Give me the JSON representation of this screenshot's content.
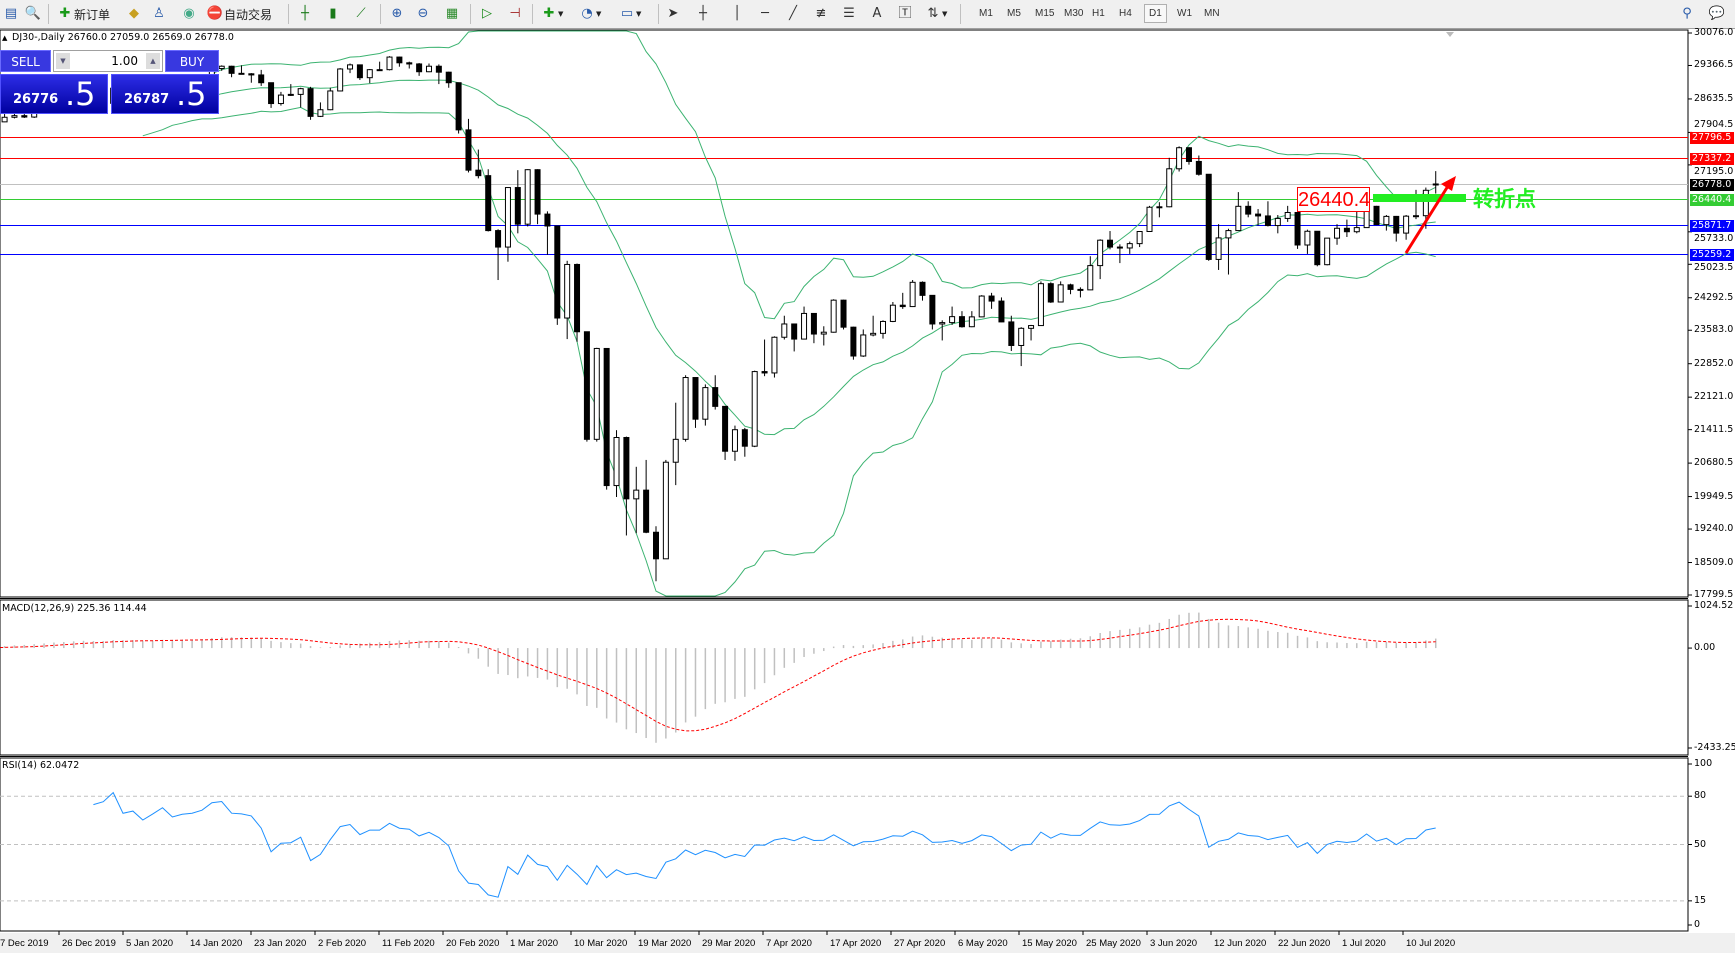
{
  "toolbar": {
    "new_order_label": "新订单",
    "auto_trading_label": "自动交易",
    "timeframes": [
      "M1",
      "M5",
      "M15",
      "M30",
      "H1",
      "H4",
      "D1",
      "W1",
      "MN"
    ],
    "active_timeframe": "D1"
  },
  "chart_info": "DJ30-,Daily  26760.0 27059.0 26569.0 26778.0",
  "trade_panel": {
    "sell_label": "SELL",
    "buy_label": "BUY",
    "lot": "1.00",
    "sell_main": "26776",
    "sell_frac": ".5",
    "buy_main": "26787",
    "buy_frac": ".5"
  },
  "annotation": {
    "value": "26440.4",
    "text": "转折点",
    "color_text": "#22ee22",
    "color_box": "#ff0000"
  },
  "chart_data": {
    "type": "candlestick",
    "symbol": "DJ30-",
    "timeframe": "Daily",
    "ylim": [
      17799.5,
      30076.0
    ],
    "y_ticks": [
      "30076.0",
      "29366.5",
      "28635.5",
      "27904.5",
      "27195.0",
      "25733.0",
      "25023.5",
      "24292.5",
      "23583.0",
      "22852.0",
      "22121.0",
      "21411.5",
      "20680.5",
      "19949.5",
      "19240.0",
      "18509.0",
      "17799.5"
    ],
    "x_tick_labels": [
      "7 Dec 2019",
      "26 Dec 2019",
      "5 Jan 2020",
      "14 Jan 2020",
      "23 Jan 2020",
      "2 Feb 2020",
      "11 Feb 2020",
      "20 Feb 2020",
      "1 Mar 2020",
      "10 Mar 2020",
      "19 Mar 2020",
      "29 Mar 2020",
      "7 Apr 2020",
      "17 Apr 2020",
      "27 Apr 2020",
      "6 May 2020",
      "15 May 2020",
      "25 May 2020",
      "3 Jun 2020",
      "12 Jun 2020",
      "22 Jun 2020",
      "1 Jul 2020",
      "10 Jul 2020"
    ],
    "horizontal_lines": [
      {
        "value": "27796.5",
        "color": "#ff0000"
      },
      {
        "value": "27337.2",
        "color": "#ff0000"
      },
      {
        "value": "26778.0",
        "color": "#000000",
        "line_color": "#c0c0c0"
      },
      {
        "value": "26440.4",
        "color": "#33cc33"
      },
      {
        "value": "25871.7",
        "color": "#0000ff"
      },
      {
        "value": "25259.2",
        "color": "#0000ff"
      }
    ],
    "bollinger_color": "#3cb371",
    "ohlc": [
      [
        28010,
        28050,
        27870,
        27910
      ],
      [
        27910,
        27990,
        27840,
        27880
      ],
      [
        27880,
        27960,
        27860,
        27910
      ],
      [
        27910,
        28210,
        27880,
        28130
      ],
      [
        28130,
        28290,
        28030,
        28135
      ],
      [
        28135,
        28340,
        28130,
        28235
      ],
      [
        28235,
        28320,
        28210,
        28270
      ],
      [
        28270,
        28320,
        28220,
        28240
      ],
      [
        28240,
        28400,
        28220,
        28375
      ],
      [
        28375,
        28610,
        28360,
        28455
      ],
      [
        28455,
        28590,
        28450,
        28550
      ],
      [
        28550,
        28580,
        28490,
        28515
      ],
      [
        28515,
        28640,
        28510,
        28620
      ],
      [
        28620,
        28700,
        28590,
        28645
      ],
      [
        28645,
        28660,
        28420,
        28460
      ],
      [
        28460,
        28560,
        28380,
        28540
      ],
      [
        28540,
        28880,
        28530,
        28870
      ],
      [
        28870,
        28870,
        28500,
        28635
      ],
      [
        28635,
        28720,
        28400,
        28700
      ],
      [
        28700,
        28710,
        28550,
        28585
      ],
      [
        28585,
        28900,
        28450,
        28745
      ],
      [
        28745,
        29010,
        28740,
        28955
      ],
      [
        28955,
        29000,
        28800,
        28825
      ],
      [
        28825,
        28920,
        28790,
        28905
      ],
      [
        28905,
        29000,
        28840,
        28940
      ],
      [
        28940,
        29120,
        28920,
        29030
      ],
      [
        29030,
        29310,
        29020,
        29300
      ],
      [
        29300,
        29370,
        29250,
        29350
      ],
      [
        29350,
        29360,
        29110,
        29195
      ],
      [
        29195,
        29370,
        29170,
        29185
      ],
      [
        29185,
        29200,
        28990,
        29160
      ],
      [
        29160,
        29270,
        28920,
        28990
      ],
      [
        28990,
        28990,
        28440,
        28535
      ],
      [
        28535,
        28790,
        28490,
        28720
      ],
      [
        28720,
        28960,
        28700,
        28735
      ],
      [
        28735,
        28880,
        28450,
        28860
      ],
      [
        28860,
        28900,
        28180,
        28255
      ],
      [
        28255,
        28560,
        28240,
        28400
      ],
      [
        28400,
        28880,
        28390,
        28810
      ],
      [
        28810,
        29310,
        28800,
        29290
      ],
      [
        29290,
        29410,
        29200,
        29380
      ],
      [
        29380,
        29380,
        29050,
        29100
      ],
      [
        29100,
        29290,
        28980,
        29275
      ],
      [
        29275,
        29450,
        29250,
        29275
      ],
      [
        29275,
        29570,
        29260,
        29550
      ],
      [
        29550,
        29560,
        29340,
        29425
      ],
      [
        29425,
        29450,
        29300,
        29400
      ],
      [
        29400,
        29420,
        29140,
        29230
      ],
      [
        29230,
        29410,
        29220,
        29350
      ],
      [
        29350,
        29390,
        28960,
        29220
      ],
      [
        29220,
        29230,
        28880,
        28990
      ],
      [
        28990,
        28990,
        27880,
        27960
      ],
      [
        27960,
        28200,
        27030,
        27080
      ],
      [
        27080,
        27530,
        26900,
        26960
      ],
      [
        26960,
        27100,
        25740,
        25760
      ],
      [
        25760,
        25790,
        24680,
        25400
      ],
      [
        25400,
        26710,
        25080,
        26700
      ],
      [
        26700,
        27080,
        25700,
        25900
      ],
      [
        25900,
        27100,
        25850,
        27090
      ],
      [
        27090,
        27100,
        25900,
        26120
      ],
      [
        26120,
        26180,
        25230,
        25860
      ],
      [
        25860,
        25860,
        23700,
        23850
      ],
      [
        23850,
        25100,
        23390,
        25020
      ],
      [
        25020,
        25040,
        23330,
        23550
      ],
      [
        23550,
        23550,
        21150,
        21200
      ],
      [
        21200,
        23200,
        21150,
        23185
      ],
      [
        23185,
        23185,
        20100,
        20190
      ],
      [
        20190,
        21400,
        19940,
        21240
      ],
      [
        21240,
        21260,
        19100,
        19900
      ],
      [
        19900,
        20600,
        19150,
        20090
      ],
      [
        20090,
        20750,
        19150,
        19170
      ],
      [
        19170,
        19300,
        18100,
        18590
      ],
      [
        18590,
        20750,
        18590,
        20700
      ],
      [
        20700,
        22000,
        20200,
        21200
      ],
      [
        21200,
        22600,
        21150,
        22550
      ],
      [
        22550,
        22550,
        21450,
        21640
      ],
      [
        21640,
        22400,
        21500,
        22330
      ],
      [
        22330,
        22600,
        21850,
        21920
      ],
      [
        21920,
        21920,
        20750,
        20940
      ],
      [
        20940,
        21500,
        20730,
        21410
      ],
      [
        21410,
        21450,
        20820,
        21050
      ],
      [
        21050,
        22700,
        21030,
        22680
      ],
      [
        22680,
        23380,
        22580,
        22650
      ],
      [
        22650,
        23450,
        22550,
        23430
      ],
      [
        23430,
        23900,
        23380,
        23720
      ],
      [
        23720,
        23730,
        23120,
        23390
      ],
      [
        23390,
        24100,
        23380,
        23950
      ],
      [
        23950,
        23950,
        23300,
        23500
      ],
      [
        23500,
        23670,
        23250,
        23540
      ],
      [
        23540,
        24260,
        23530,
        24240
      ],
      [
        24240,
        24250,
        23600,
        23650
      ],
      [
        23650,
        23660,
        22940,
        23020
      ],
      [
        23020,
        23600,
        23000,
        23480
      ],
      [
        23480,
        23900,
        23450,
        23515
      ],
      [
        23515,
        23800,
        23400,
        23775
      ],
      [
        23775,
        24200,
        23760,
        24130
      ],
      [
        24130,
        24400,
        24050,
        24100
      ],
      [
        24100,
        24680,
        24090,
        24630
      ],
      [
        24630,
        24650,
        24230,
        24345
      ],
      [
        24345,
        24350,
        23600,
        23720
      ],
      [
        23720,
        23800,
        23360,
        23750
      ],
      [
        23750,
        24100,
        23700,
        23880
      ],
      [
        23880,
        24000,
        23640,
        23660
      ],
      [
        23660,
        24000,
        23650,
        23875
      ],
      [
        23875,
        24350,
        23870,
        24330
      ],
      [
        24330,
        24400,
        24050,
        24220
      ],
      [
        24220,
        24300,
        23760,
        23765
      ],
      [
        23765,
        23900,
        23130,
        23250
      ],
      [
        23250,
        23650,
        22800,
        23625
      ],
      [
        23625,
        23700,
        23360,
        23685
      ],
      [
        23685,
        24650,
        23680,
        24600
      ],
      [
        24600,
        24630,
        24180,
        24200
      ],
      [
        24200,
        24650,
        24190,
        24575
      ],
      [
        24575,
        24600,
        24370,
        24475
      ],
      [
        24475,
        24520,
        24300,
        24465
      ],
      [
        24465,
        25200,
        24460,
        24995
      ],
      [
        24995,
        25570,
        24700,
        25550
      ],
      [
        25550,
        25750,
        25350,
        25400
      ],
      [
        25400,
        25460,
        25050,
        25380
      ],
      [
        25380,
        25520,
        25250,
        25475
      ],
      [
        25475,
        25750,
        25400,
        25740
      ],
      [
        25740,
        26300,
        25730,
        26270
      ],
      [
        26270,
        26380,
        26050,
        26280
      ],
      [
        26280,
        27350,
        26270,
        27110
      ],
      [
        27110,
        27600,
        27050,
        27570
      ],
      [
        27570,
        27580,
        27200,
        27270
      ],
      [
        27270,
        27400,
        26960,
        26990
      ],
      [
        26990,
        26990,
        25100,
        25130
      ],
      [
        25130,
        25900,
        24900,
        25600
      ],
      [
        25600,
        25800,
        24800,
        25760
      ],
      [
        25760,
        26600,
        25750,
        26290
      ],
      [
        26290,
        26400,
        26050,
        26120
      ],
      [
        26120,
        26230,
        25870,
        26080
      ],
      [
        26080,
        26400,
        25850,
        25870
      ],
      [
        25870,
        26100,
        25700,
        26025
      ],
      [
        26025,
        26300,
        25950,
        26155
      ],
      [
        26155,
        26160,
        25360,
        25445
      ],
      [
        25445,
        25780,
        25250,
        25745
      ],
      [
        25745,
        25750,
        24980,
        25015
      ],
      [
        25015,
        25600,
        25000,
        25595
      ],
      [
        25595,
        25900,
        25450,
        25810
      ],
      [
        25810,
        26000,
        25620,
        25735
      ],
      [
        25735,
        26200,
        25700,
        25825
      ],
      [
        25825,
        26350,
        25820,
        26290
      ],
      [
        26290,
        26300,
        25880,
        25890
      ],
      [
        25890,
        26100,
        25760,
        26070
      ],
      [
        26070,
        26080,
        25520,
        25705
      ],
      [
        25705,
        26100,
        25560,
        26075
      ],
      [
        26075,
        26650,
        26010,
        26085
      ],
      [
        26085,
        26700,
        25800,
        26640
      ],
      [
        26760,
        27059,
        26569,
        26778
      ]
    ]
  },
  "macd": {
    "label": "MACD(12,26,9) 225.36 114.44",
    "ylim": [
      -2433.25,
      1024.52
    ],
    "ticks": [
      "1024.52",
      "0.00",
      "-2433.25"
    ],
    "histogram_color": "#c0c0c0",
    "signal_color": "#ff0000"
  },
  "rsi": {
    "label": "RSI(14) 62.0472",
    "ylim": [
      0,
      100
    ],
    "ticks": [
      "100",
      "80",
      "50",
      "15",
      "0"
    ],
    "levels": [
      80,
      50,
      15
    ],
    "color": "#1e90ff"
  }
}
